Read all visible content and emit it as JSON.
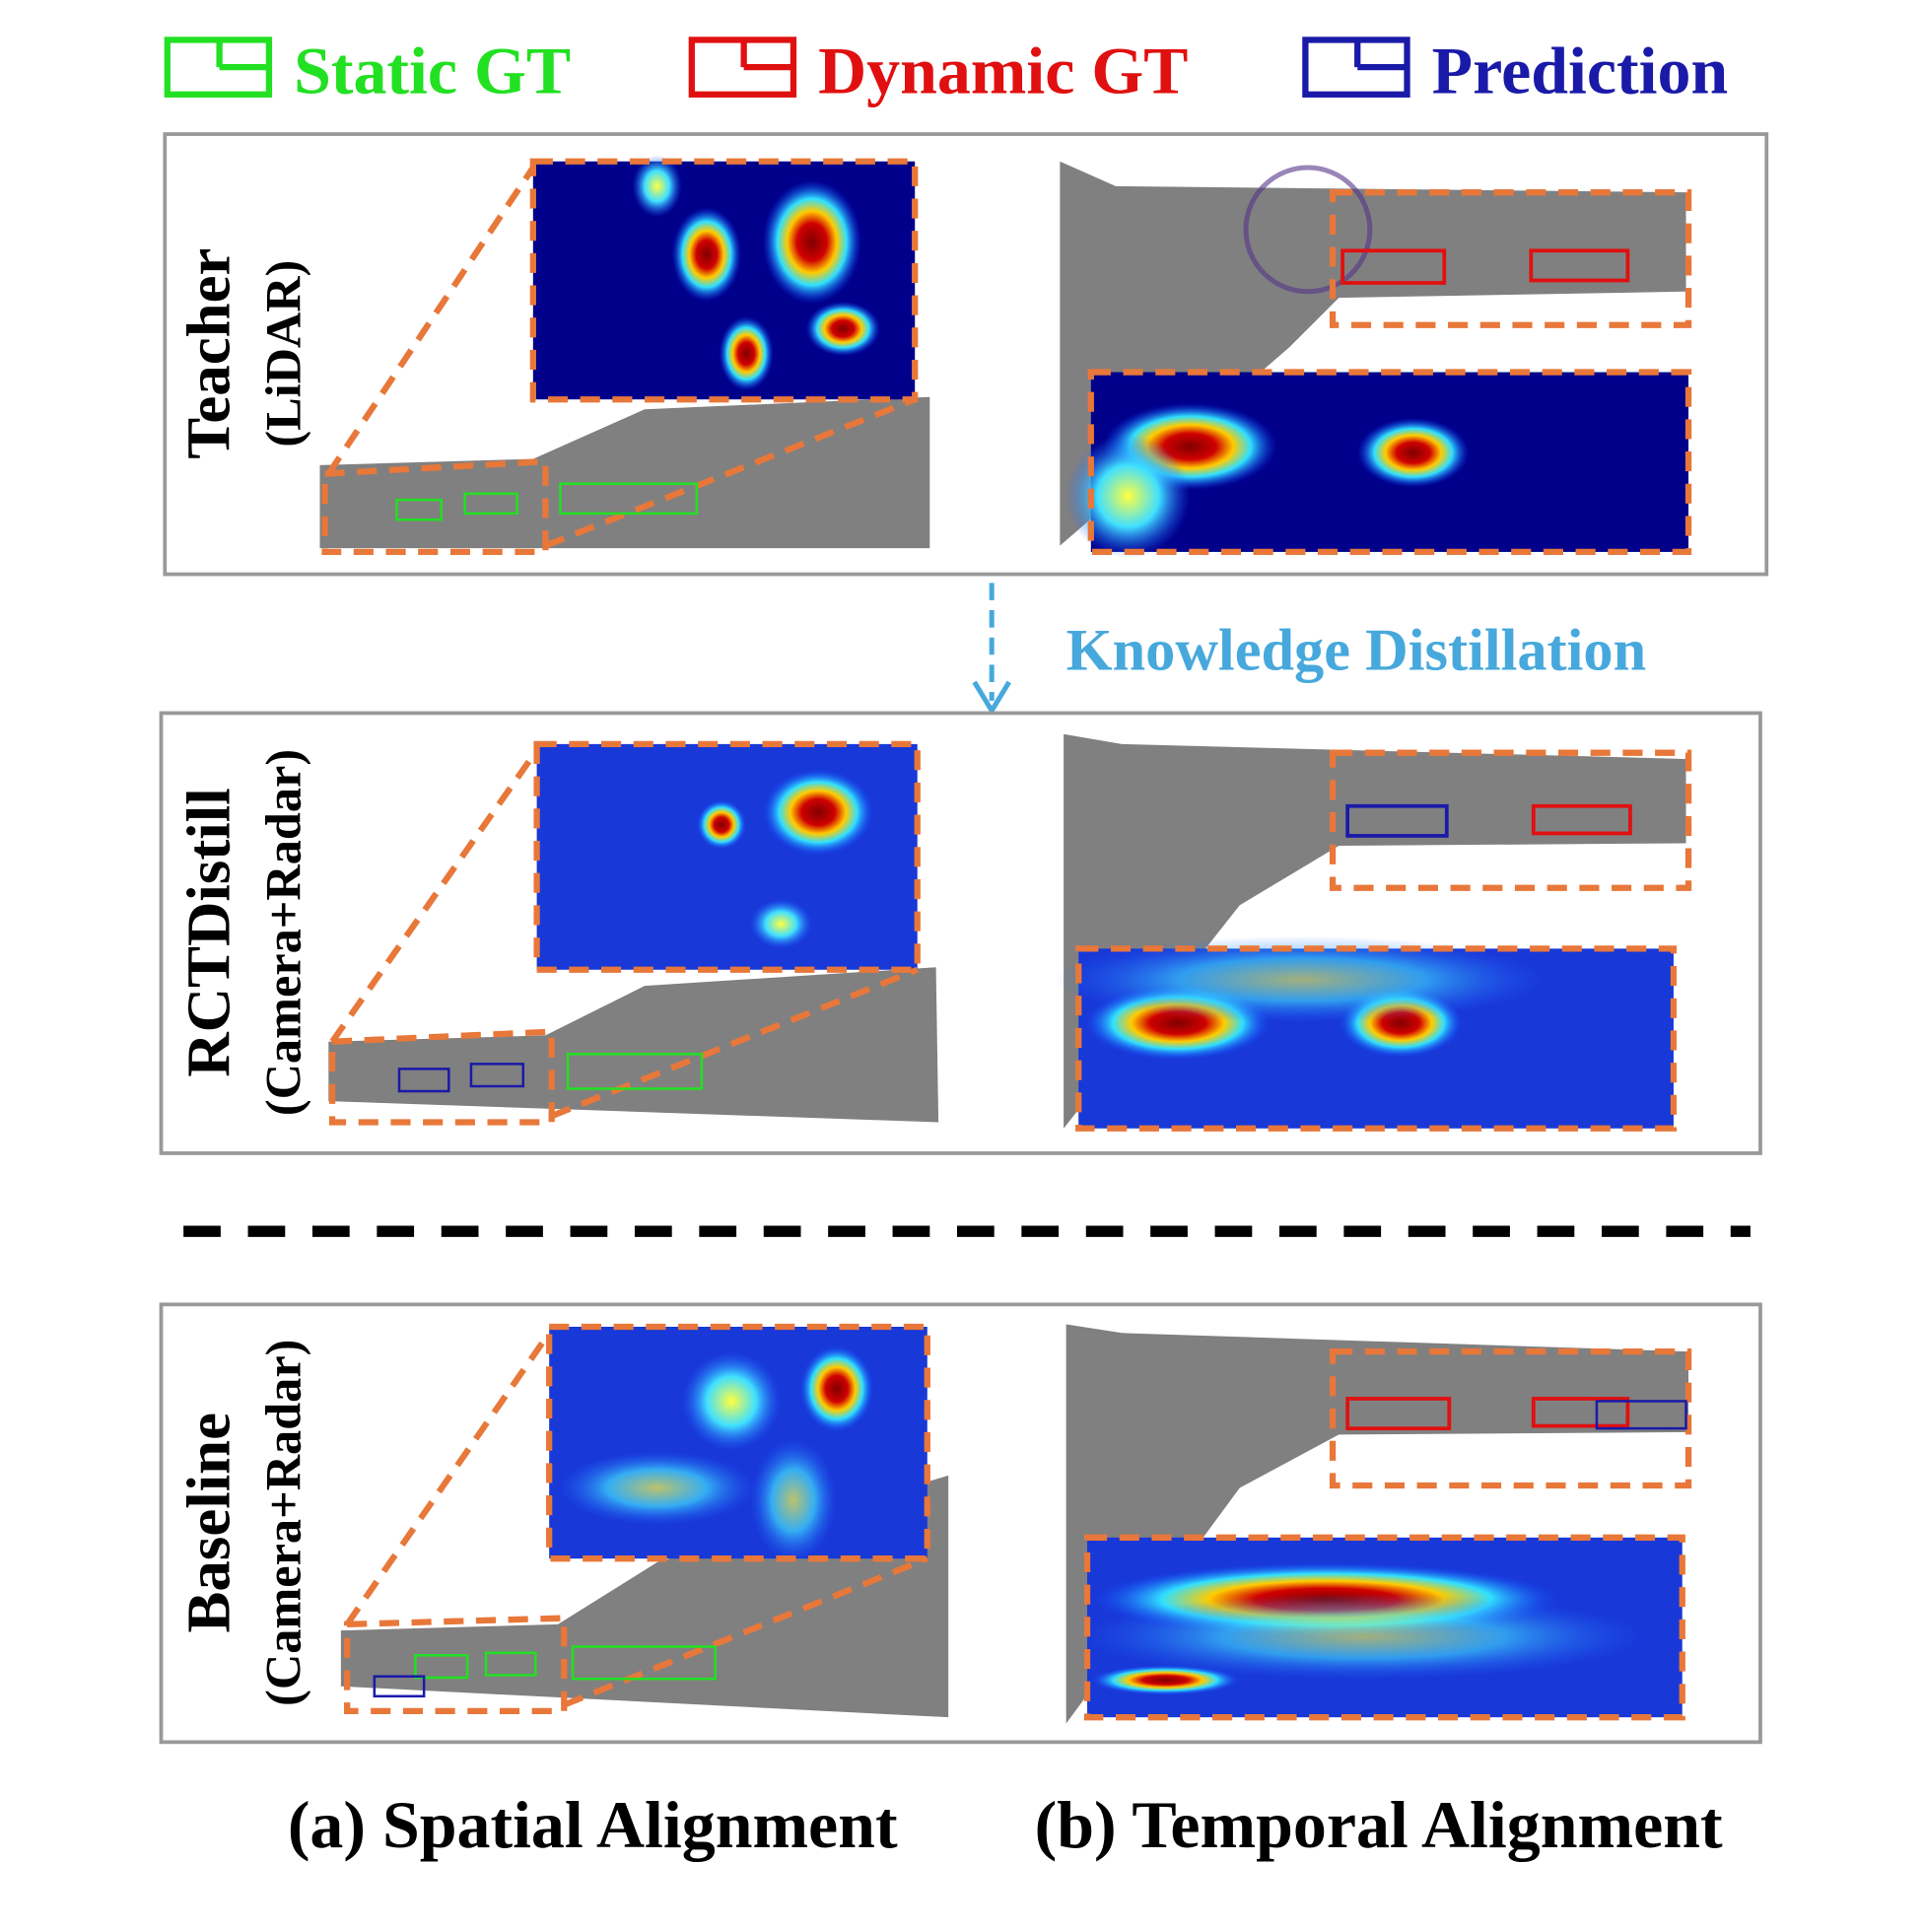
{
  "legend": [
    {
      "label": "Static GT",
      "color": "#22e022"
    },
    {
      "label": "Dynamic GT",
      "color": "#e01010"
    },
    {
      "label": "Prediction",
      "color": "#1a1aa8"
    }
  ],
  "arrow_label": "Knowledge Distillation",
  "rows": [
    {
      "name": "Teacher",
      "sub": "(LiDAR)"
    },
    {
      "name": "RCTDistill",
      "sub": "(Camera+Radar)"
    },
    {
      "name": "Baseline",
      "sub": "(Camera+Radar)"
    }
  ],
  "captions": [
    "(a) Spatial Alignment",
    "(b) Temporal Alignment"
  ]
}
